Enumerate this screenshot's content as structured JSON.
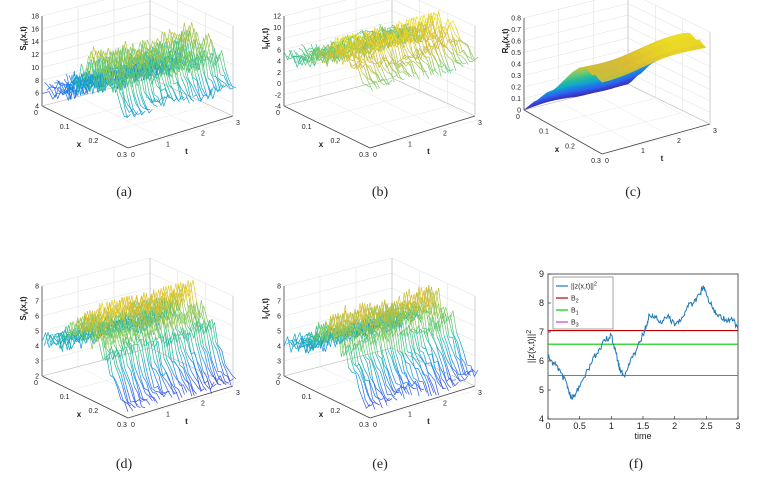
{
  "chart_data": [
    {
      "id": "a",
      "type": "surface",
      "caption": "(a)",
      "zlabel": "S_H(x,t)",
      "xlabel": "x",
      "tlabel": "t",
      "zticks": [
        "4",
        "6",
        "8",
        "10",
        "12",
        "14",
        "16",
        "18"
      ],
      "xticks": [
        "0",
        "0.1",
        "0.2",
        "0.3"
      ],
      "tticks": [
        "0",
        "1",
        "2",
        "3"
      ],
      "zlim": [
        4,
        18
      ],
      "xlim": [
        0,
        0.3
      ],
      "tlim": [
        0,
        3
      ],
      "profile": [
        6.8,
        6.5,
        7.2,
        6.2,
        7.8,
        8.5,
        7.0,
        9.5,
        8.0,
        11.0,
        9.2,
        13.5,
        12.0,
        15.5,
        14.0,
        10.5,
        12.5,
        14.8,
        13.0,
        11.5,
        13.8,
        11.0,
        10.2,
        9.0,
        9.5
      ],
      "tone": "ramp"
    },
    {
      "id": "b",
      "type": "surface",
      "caption": "(b)",
      "zlabel": "I_H(x,t)",
      "xlabel": "x",
      "tlabel": "t",
      "zticks": [
        "-4",
        "-2",
        "0",
        "2",
        "4",
        "6",
        "8",
        "10",
        "12"
      ],
      "xticks": [
        "0",
        "0.1",
        "0.2",
        "0.3"
      ],
      "tticks": [
        "0",
        "1",
        "2",
        "3"
      ],
      "zlim": [
        -4,
        12
      ],
      "xlim": [
        0,
        0.3
      ],
      "tlim": [
        0,
        3
      ],
      "profile": [
        5.0,
        4.8,
        5.5,
        4.2,
        5.8,
        6.5,
        5.0,
        7.2,
        6.0,
        8.5,
        7.0,
        9.5,
        8.0,
        11.5,
        10.0,
        8.5,
        9.8,
        11.0,
        9.5,
        8.0,
        9.0,
        8.5,
        7.8,
        7.0,
        6.8
      ],
      "tone": "ramp"
    },
    {
      "id": "c",
      "type": "surface",
      "caption": "(c)",
      "zlabel": "R_H(x,t)",
      "xlabel": "x",
      "tlabel": "t",
      "zticks": [
        "0",
        "0.1",
        "0.2",
        "0.3",
        "0.4",
        "0.5",
        "0.6",
        "0.7",
        "0.8"
      ],
      "xticks": [
        "0",
        "0.1",
        "0.2",
        "0.3"
      ],
      "tticks": [
        "0",
        "1",
        "2",
        "3"
      ],
      "zlim": [
        0,
        0.8
      ],
      "xlim": [
        0,
        0.3
      ],
      "tlim": [
        0,
        3
      ],
      "profile": [
        0.0,
        0.04,
        0.08,
        0.12,
        0.15,
        0.19,
        0.23,
        0.27,
        0.3,
        0.33,
        0.37,
        0.42,
        0.47,
        0.52,
        0.57,
        0.62,
        0.66,
        0.7,
        0.72,
        0.74,
        0.73,
        0.72,
        0.74,
        0.72,
        0.71
      ],
      "tone": "smooth"
    },
    {
      "id": "d",
      "type": "surface",
      "caption": "(d)",
      "zlabel": "S_V(x,t)",
      "xlabel": "x",
      "tlabel": "t",
      "zticks": [
        "2",
        "3",
        "4",
        "5",
        "6",
        "7",
        "8"
      ],
      "xticks": [
        "0",
        "0.1",
        "0.2",
        "0.3"
      ],
      "tticks": [
        "0",
        "1",
        "2",
        "3"
      ],
      "zlim": [
        2,
        8
      ],
      "xlim": [
        0,
        0.3
      ],
      "tlim": [
        0,
        3
      ],
      "profile": [
        4.2,
        4.5,
        4.0,
        4.8,
        5.2,
        4.5,
        5.8,
        5.0,
        6.5,
        6.0,
        7.2,
        6.4,
        7.8,
        6.5,
        5.5,
        6.8,
        6.0,
        5.2,
        5.8,
        4.5,
        4.0,
        3.5,
        3.0,
        2.8,
        2.6
      ],
      "tone": "fall"
    },
    {
      "id": "e",
      "type": "surface",
      "caption": "(e)",
      "zlabel": "I_V(x,t)",
      "xlabel": "x",
      "tlabel": "t",
      "zticks": [
        "2",
        "3",
        "4",
        "5",
        "6",
        "7",
        "8"
      ],
      "xticks": [
        "0",
        "0.1",
        "0.2",
        "0.3"
      ],
      "tticks": [
        "0",
        "1",
        "2",
        "3"
      ],
      "zlim": [
        2,
        8
      ],
      "xlim": [
        0,
        0.3
      ],
      "tlim": [
        0,
        3
      ],
      "profile": [
        4.0,
        4.3,
        3.8,
        4.5,
        4.2,
        5.0,
        4.6,
        5.5,
        5.0,
        6.2,
        5.8,
        7.0,
        6.2,
        7.5,
        6.0,
        6.8,
        5.5,
        6.2,
        5.0,
        4.6,
        4.0,
        3.6,
        3.2,
        3.0,
        2.8
      ],
      "tone": "fall"
    },
    {
      "id": "f",
      "type": "line",
      "caption": "(f)",
      "xlabel": "time",
      "ylabel": "||z(x,t)||^2",
      "xlim": [
        0,
        3
      ],
      "ylim": [
        4,
        9
      ],
      "xticks": [
        "0",
        "0.5",
        "1",
        "1.5",
        "2",
        "2.5",
        "3"
      ],
      "yticks": [
        "4",
        "5",
        "6",
        "7",
        "8",
        "9"
      ],
      "series": [
        {
          "name": "||z(x,t)||^2",
          "color": "#1f77b4",
          "x": [
            0,
            0.1,
            0.2,
            0.3,
            0.35,
            0.4,
            0.5,
            0.6,
            0.7,
            0.8,
            0.9,
            1.0,
            1.05,
            1.1,
            1.15,
            1.2,
            1.3,
            1.4,
            1.5,
            1.55,
            1.6,
            1.7,
            1.8,
            1.9,
            2.0,
            2.1,
            2.2,
            2.3,
            2.4,
            2.45,
            2.5,
            2.6,
            2.7,
            2.8,
            2.9,
            3.0
          ],
          "y": [
            6.1,
            5.9,
            5.6,
            5.2,
            4.8,
            4.75,
            5.1,
            5.6,
            6.0,
            6.4,
            6.7,
            6.9,
            6.5,
            6.0,
            5.6,
            5.5,
            6.0,
            6.4,
            6.9,
            7.2,
            7.6,
            7.5,
            7.3,
            7.6,
            7.2,
            7.4,
            7.9,
            8.0,
            8.3,
            8.6,
            8.3,
            7.8,
            7.6,
            7.4,
            7.5,
            7.1
          ]
        },
        {
          "name": "B_2",
          "color": "#c00000",
          "x": [
            0,
            3
          ],
          "y": [
            7.05,
            7.05
          ]
        },
        {
          "name": "B_1",
          "color": "#00cc00",
          "x": [
            0,
            3
          ],
          "y": [
            6.58,
            6.58
          ]
        },
        {
          "name": "B_3",
          "color": "#cc44cc",
          "x": [
            0,
            3
          ],
          "y": [
            5.5,
            5.5
          ]
        }
      ],
      "legend": "top-left"
    }
  ]
}
